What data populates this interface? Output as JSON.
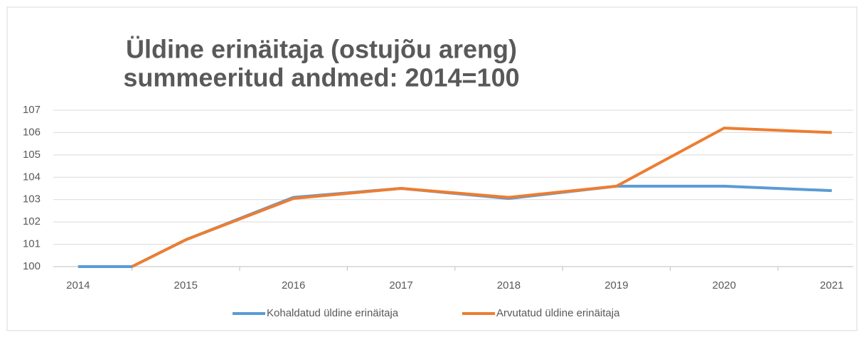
{
  "chart_data": {
    "type": "line",
    "title": [
      "Üldine erinäitaja (ostujõu areng)",
      "summeeritud andmed: 2014=100"
    ],
    "x": [
      2014,
      2014.5,
      2015,
      2016,
      2017,
      2018,
      2019,
      2020,
      2021
    ],
    "series": [
      {
        "name": "Kohaldatud üldine erinäitaja",
        "color": "#5b9bd5",
        "values": [
          100,
          100,
          101.2,
          103.1,
          103.5,
          103.05,
          103.6,
          103.6,
          103.4
        ]
      },
      {
        "name": "Arvutatud üldine erinäitaja",
        "color": "#ed7d31",
        "values": [
          null,
          100,
          101.2,
          103.05,
          103.5,
          103.1,
          103.6,
          106.2,
          106.0
        ]
      }
    ],
    "xlim": [
      2013.77,
      2021.2
    ],
    "xticks": [
      2014,
      2015,
      2016,
      2017,
      2018,
      2019,
      2020,
      2021
    ],
    "ylim": [
      100,
      107
    ],
    "yticks": [
      100,
      101,
      102,
      103,
      104,
      105,
      106,
      107
    ],
    "grid": true,
    "legend": "bottom"
  }
}
